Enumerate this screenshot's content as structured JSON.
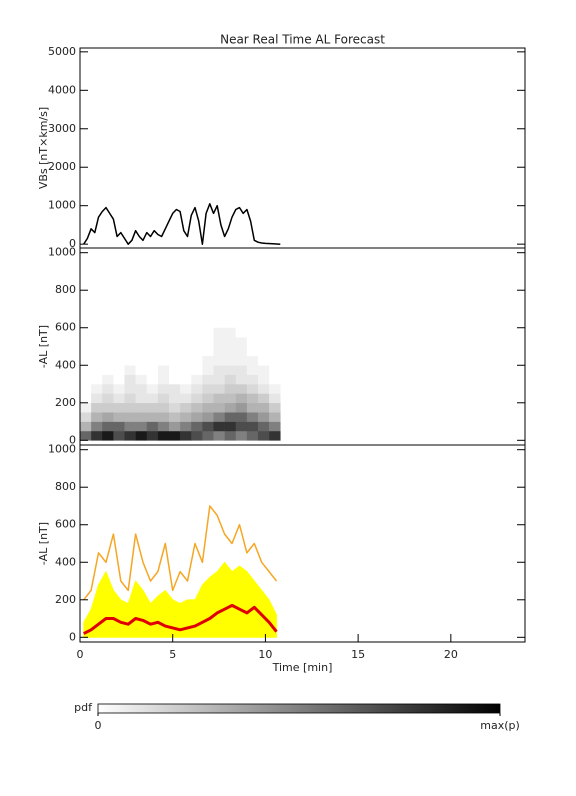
{
  "chart_data": [
    {
      "type": "line",
      "title": "Near Real Time AL Forecast",
      "ylabel": "VBs [nT×km/s]",
      "xlim": [
        0,
        24
      ],
      "ylim": [
        -100,
        5100
      ],
      "yticks": [
        0,
        1000,
        2000,
        3000,
        4000,
        5000
      ],
      "x": [
        0.2,
        0.4,
        0.6,
        0.8,
        1.0,
        1.2,
        1.4,
        1.6,
        1.8,
        2.0,
        2.2,
        2.4,
        2.6,
        2.8,
        3.0,
        3.2,
        3.4,
        3.6,
        3.8,
        4.0,
        4.2,
        4.4,
        4.6,
        4.8,
        5.0,
        5.2,
        5.4,
        5.6,
        5.8,
        6.0,
        6.2,
        6.4,
        6.6,
        6.8,
        7.0,
        7.2,
        7.4,
        7.6,
        7.8,
        8.0,
        8.2,
        8.4,
        8.6,
        8.8,
        9.0,
        9.2,
        9.4,
        9.6,
        9.8,
        10.0,
        10.4,
        10.8
      ],
      "series": [
        {
          "color": "#000000",
          "values": [
            0,
            150,
            400,
            300,
            700,
            850,
            950,
            800,
            650,
            200,
            300,
            150,
            0,
            100,
            350,
            200,
            100,
            300,
            200,
            350,
            250,
            200,
            400,
            600,
            800,
            900,
            850,
            350,
            200,
            750,
            950,
            600,
            0,
            800,
            1050,
            800,
            1000,
            500,
            200,
            400,
            700,
            900,
            950,
            800,
            900,
            600,
            100,
            50,
            30,
            20,
            10,
            0
          ]
        }
      ]
    },
    {
      "type": "heatmap",
      "ylabel": "-AL [nT]",
      "xlim": [
        0,
        24
      ],
      "ylim": [
        -25,
        1025
      ],
      "yticks": [
        0,
        200,
        400,
        600,
        800,
        1000
      ],
      "x_bins": [
        0,
        0.6,
        1.2,
        1.8,
        2.4,
        3.0,
        3.6,
        4.2,
        4.8,
        5.4,
        6.0,
        6.6,
        7.2,
        7.8,
        8.4,
        9.0,
        9.6,
        10.2,
        10.8
      ],
      "y_bins": [
        0,
        50,
        100,
        150,
        200,
        250,
        300,
        350,
        400,
        450,
        500,
        550,
        600
      ],
      "z": [
        [
          0.6,
          0.3,
          0.15,
          0.05,
          0,
          0,
          0,
          0,
          0,
          0,
          0,
          0
        ],
        [
          0.8,
          0.5,
          0.3,
          0.2,
          0.1,
          0.05,
          0,
          0,
          0,
          0,
          0,
          0
        ],
        [
          0.9,
          0.6,
          0.35,
          0.2,
          0.15,
          0.1,
          0.05,
          0,
          0,
          0,
          0,
          0
        ],
        [
          0.7,
          0.6,
          0.3,
          0.2,
          0.1,
          0.05,
          0,
          0,
          0,
          0,
          0,
          0
        ],
        [
          0.8,
          0.5,
          0.3,
          0.2,
          0.15,
          0.1,
          0.1,
          0.05,
          0,
          0,
          0,
          0
        ],
        [
          0.9,
          0.5,
          0.3,
          0.2,
          0.1,
          0.1,
          0.05,
          0,
          0,
          0,
          0,
          0
        ],
        [
          0.8,
          0.6,
          0.3,
          0.2,
          0.1,
          0.05,
          0,
          0,
          0,
          0,
          0,
          0
        ],
        [
          0.9,
          0.5,
          0.3,
          0.2,
          0.15,
          0.1,
          0.05,
          0.05,
          0,
          0,
          0,
          0
        ],
        [
          0.9,
          0.4,
          0.25,
          0.15,
          0.1,
          0.1,
          0,
          0,
          0,
          0,
          0,
          0
        ],
        [
          0.8,
          0.5,
          0.3,
          0.2,
          0.1,
          0.05,
          0,
          0,
          0,
          0,
          0,
          0
        ],
        [
          0.7,
          0.6,
          0.35,
          0.25,
          0.15,
          0.1,
          0.05,
          0,
          0,
          0,
          0,
          0
        ],
        [
          0.6,
          0.7,
          0.4,
          0.3,
          0.2,
          0.15,
          0.1,
          0.05,
          0.05,
          0,
          0,
          0
        ],
        [
          0.5,
          0.8,
          0.5,
          0.3,
          0.25,
          0.15,
          0.1,
          0.1,
          0.05,
          0.05,
          0.05,
          0.05
        ],
        [
          0.6,
          0.8,
          0.6,
          0.35,
          0.25,
          0.2,
          0.15,
          0.1,
          0.05,
          0.05,
          0.05,
          0.05
        ],
        [
          0.5,
          0.7,
          0.6,
          0.4,
          0.3,
          0.2,
          0.1,
          0.1,
          0.05,
          0.05,
          0.05,
          0
        ],
        [
          0.6,
          0.7,
          0.5,
          0.3,
          0.25,
          0.15,
          0.1,
          0.05,
          0.05,
          0,
          0,
          0
        ],
        [
          0.7,
          0.6,
          0.4,
          0.3,
          0.2,
          0.1,
          0.05,
          0.05,
          0,
          0,
          0,
          0
        ],
        [
          0.8,
          0.5,
          0.3,
          0.2,
          0.1,
          0.05,
          0,
          0,
          0,
          0,
          0,
          0
        ]
      ],
      "zlabel": "pdf",
      "zlim": [
        0,
        1
      ],
      "zticks": [
        0,
        {
          "value": 1,
          "label": "max(p)"
        }
      ]
    },
    {
      "type": "line",
      "ylabel": "-AL [nT]",
      "xlabel": "Time [min]",
      "xlim": [
        0,
        24
      ],
      "xticks": [
        0,
        5,
        10,
        15,
        20
      ],
      "ylim": [
        -25,
        1025
      ],
      "yticks": [
        0,
        200,
        400,
        600,
        800,
        1000
      ],
      "x": [
        0.2,
        0.6,
        1.0,
        1.4,
        1.8,
        2.2,
        2.6,
        3.0,
        3.4,
        3.8,
        4.2,
        4.6,
        5.0,
        5.4,
        5.8,
        6.2,
        6.6,
        7.0,
        7.4,
        7.8,
        8.2,
        8.6,
        9.0,
        9.4,
        9.8,
        10.2,
        10.6
      ],
      "series": [
        {
          "color": "#f5a623",
          "values": [
            200,
            250,
            450,
            400,
            550,
            300,
            250,
            550,
            400,
            300,
            350,
            500,
            250,
            350,
            300,
            500,
            400,
            700,
            650,
            550,
            500,
            600,
            450,
            500,
            400,
            350,
            300
          ]
        },
        {
          "color": "#ffff00",
          "fill": true,
          "values": [
            80,
            150,
            280,
            350,
            250,
            200,
            180,
            300,
            250,
            180,
            220,
            250,
            200,
            180,
            200,
            200,
            280,
            320,
            350,
            400,
            350,
            380,
            350,
            300,
            250,
            200,
            120
          ]
        },
        {
          "color": "#e00000",
          "width": 3,
          "values": [
            20,
            40,
            70,
            100,
            100,
            80,
            70,
            100,
            90,
            70,
            80,
            60,
            50,
            40,
            50,
            60,
            80,
            100,
            130,
            150,
            170,
            150,
            130,
            160,
            120,
            80,
            30
          ]
        }
      ]
    }
  ]
}
